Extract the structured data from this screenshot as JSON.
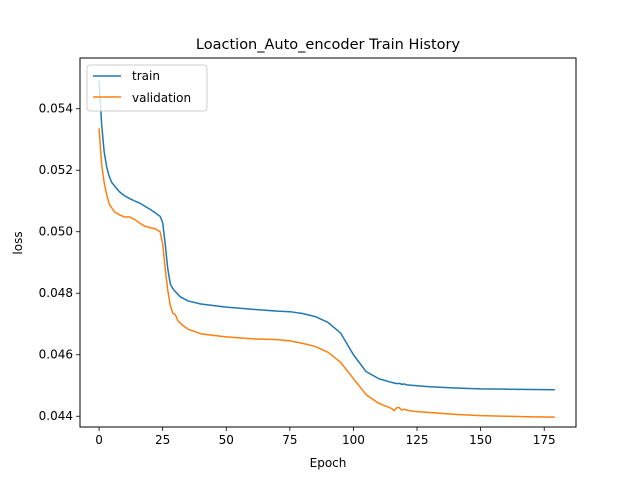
{
  "chart_data": {
    "type": "line",
    "title": "Loaction_Auto_encoder Train History",
    "xlabel": "Epoch",
    "ylabel": "loss",
    "xlim": [
      -7.5,
      187.5
    ],
    "ylim": [
      0.04365,
      0.05565
    ],
    "x_ticks": [
      0,
      25,
      50,
      75,
      100,
      125,
      150,
      175
    ],
    "y_ticks": [
      0.044,
      0.046,
      0.048,
      0.05,
      0.052,
      0.054
    ],
    "y_tick_labels": [
      "0.044",
      "0.046",
      "0.048",
      "0.050",
      "0.052",
      "0.054"
    ],
    "grid": false,
    "legend_position": "top-left",
    "series": [
      {
        "name": "train",
        "color": "#1f77b4",
        "points": [
          [
            0,
            0.0549
          ],
          [
            1,
            0.0535
          ],
          [
            2,
            0.0526
          ],
          [
            3,
            0.0521
          ],
          [
            4,
            0.0518
          ],
          [
            5,
            0.0516
          ],
          [
            6,
            0.0515
          ],
          [
            8,
            0.0513
          ],
          [
            10,
            0.05117
          ],
          [
            12,
            0.05108
          ],
          [
            14,
            0.051
          ],
          [
            16,
            0.05093
          ],
          [
            18,
            0.05083
          ],
          [
            20,
            0.05073
          ],
          [
            22,
            0.05062
          ],
          [
            24,
            0.0505
          ],
          [
            25,
            0.0503
          ],
          [
            26,
            0.0496
          ],
          [
            27,
            0.0488
          ],
          [
            28,
            0.0483
          ],
          [
            29,
            0.04815
          ],
          [
            30,
            0.04805
          ],
          [
            32,
            0.04788
          ],
          [
            35,
            0.04775
          ],
          [
            40,
            0.04765
          ],
          [
            50,
            0.04755
          ],
          [
            60,
            0.04748
          ],
          [
            70,
            0.04742
          ],
          [
            75,
            0.0474
          ],
          [
            80,
            0.04734
          ],
          [
            85,
            0.04724
          ],
          [
            90,
            0.04705
          ],
          [
            95,
            0.0467
          ],
          [
            100,
            0.046
          ],
          [
            105,
            0.04545
          ],
          [
            110,
            0.04522
          ],
          [
            115,
            0.0451
          ],
          [
            117,
            0.04506
          ],
          [
            118,
            0.04507
          ],
          [
            119,
            0.04504
          ],
          [
            120,
            0.04505
          ],
          [
            121,
            0.04502
          ],
          [
            125,
            0.04499
          ],
          [
            130,
            0.04496
          ],
          [
            140,
            0.04492
          ],
          [
            150,
            0.04489
          ],
          [
            160,
            0.04488
          ],
          [
            170,
            0.04487
          ],
          [
            179,
            0.04486
          ]
        ]
      },
      {
        "name": "validation",
        "color": "#ff7f0e",
        "points": [
          [
            0,
            0.05335
          ],
          [
            1,
            0.0522
          ],
          [
            2,
            0.0516
          ],
          [
            3,
            0.0512
          ],
          [
            4,
            0.0509
          ],
          [
            6,
            0.05065
          ],
          [
            8,
            0.05055
          ],
          [
            10,
            0.05048
          ],
          [
            12,
            0.05048
          ],
          [
            14,
            0.0504
          ],
          [
            16,
            0.05028
          ],
          [
            18,
            0.05018
          ],
          [
            20,
            0.05013
          ],
          [
            22,
            0.0501
          ],
          [
            24,
            0.05
          ],
          [
            25,
            0.0496
          ],
          [
            26,
            0.0488
          ],
          [
            27,
            0.0481
          ],
          [
            28,
            0.0476
          ],
          [
            29,
            0.04735
          ],
          [
            30,
            0.0473
          ],
          [
            31,
            0.0471
          ],
          [
            33,
            0.04695
          ],
          [
            35,
            0.04683
          ],
          [
            40,
            0.04668
          ],
          [
            50,
            0.04658
          ],
          [
            60,
            0.04652
          ],
          [
            70,
            0.04649
          ],
          [
            75,
            0.04645
          ],
          [
            80,
            0.04637
          ],
          [
            85,
            0.04627
          ],
          [
            90,
            0.04608
          ],
          [
            95,
            0.04575
          ],
          [
            100,
            0.04522
          ],
          [
            105,
            0.0447
          ],
          [
            110,
            0.04442
          ],
          [
            113,
            0.04432
          ],
          [
            115,
            0.04425
          ],
          [
            116,
            0.04418
          ],
          [
            117,
            0.04428
          ],
          [
            118,
            0.04428
          ],
          [
            119,
            0.0442
          ],
          [
            120,
            0.04423
          ],
          [
            121,
            0.0442
          ],
          [
            122,
            0.04418
          ],
          [
            125,
            0.04415
          ],
          [
            130,
            0.04412
          ],
          [
            140,
            0.04406
          ],
          [
            150,
            0.04402
          ],
          [
            160,
            0.044
          ],
          [
            170,
            0.04398
          ],
          [
            179,
            0.04397
          ]
        ]
      }
    ]
  }
}
